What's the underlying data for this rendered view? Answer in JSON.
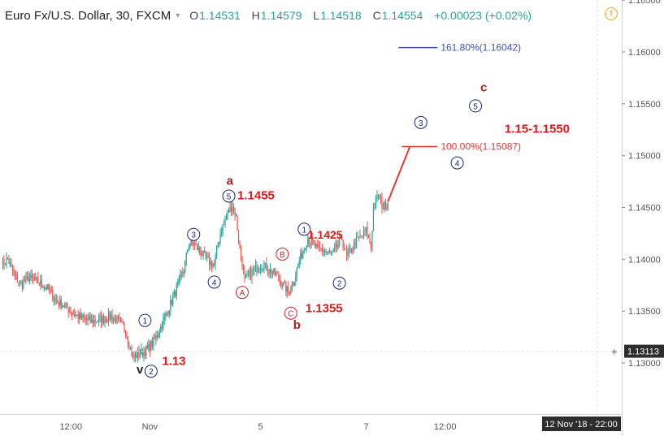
{
  "header": {
    "symbol_title": "Euro Fx/U.S. Dollar, 30, FXCM",
    "open_label": "O",
    "open": "1.14531",
    "high_label": "H",
    "high": "1.14579",
    "low_label": "L",
    "low": "1.14518",
    "close_label": "C",
    "close": "1.14554",
    "change": "+0.00023 (+0.02%)"
  },
  "alert_icon": "alert-circle-icon",
  "crosshair_price": "1.13113",
  "crosshair_time": "12 Nov '18 - 22:00",
  "colors": {
    "up": "#26a69a",
    "down": "#ef5350",
    "annot": "#e0191b",
    "wave": "#1a237e",
    "fib161": "#3f51b5",
    "fib100": "#e53935"
  },
  "chart_data": {
    "type": "candlestick",
    "title": "Euro Fx/U.S. Dollar, 30, FXCM",
    "xlabel": "",
    "ylabel": "",
    "ylim": [
      1.125,
      1.165
    ],
    "y_ticks": [
      "1.16500",
      "1.16000",
      "1.15500",
      "1.15000",
      "1.14500",
      "1.14000",
      "1.13500",
      "1.13000"
    ],
    "y_tick_values": [
      1.165,
      1.16,
      1.155,
      1.15,
      1.145,
      1.14,
      1.135,
      1.13
    ],
    "x_ticks": [
      "12:00",
      "Nov",
      "5",
      "7",
      "12:00"
    ],
    "x_tick_bars": [
      57,
      122,
      213,
      300,
      365
    ],
    "ohlc_anchors": [
      [
        0,
        1.1395
      ],
      [
        5,
        1.14
      ],
      [
        10,
        1.1385
      ],
      [
        16,
        1.1375
      ],
      [
        22,
        1.1382
      ],
      [
        30,
        1.1378
      ],
      [
        38,
        1.1372
      ],
      [
        45,
        1.136
      ],
      [
        52,
        1.1355
      ],
      [
        58,
        1.1348
      ],
      [
        66,
        1.1343
      ],
      [
        74,
        1.134
      ],
      [
        82,
        1.1342
      ],
      [
        90,
        1.1345
      ],
      [
        96,
        1.134
      ],
      [
        102,
        1.1332
      ],
      [
        108,
        1.1305
      ],
      [
        112,
        1.1308
      ],
      [
        116,
        1.131
      ],
      [
        120,
        1.1313
      ],
      [
        125,
        1.132
      ],
      [
        130,
        1.1332
      ],
      [
        135,
        1.1345
      ],
      [
        140,
        1.136
      ],
      [
        145,
        1.1375
      ],
      [
        150,
        1.139
      ],
      [
        153,
        1.141
      ],
      [
        156,
        1.1418
      ],
      [
        160,
        1.1412
      ],
      [
        165,
        1.1405
      ],
      [
        170,
        1.1398
      ],
      [
        175,
        1.1395
      ],
      [
        180,
        1.1425
      ],
      [
        186,
        1.1445
      ],
      [
        190,
        1.1452
      ],
      [
        193,
        1.144
      ],
      [
        196,
        1.141
      ],
      [
        200,
        1.138
      ],
      [
        204,
        1.1385
      ],
      [
        208,
        1.139
      ],
      [
        214,
        1.1395
      ],
      [
        220,
        1.139
      ],
      [
        226,
        1.1385
      ],
      [
        232,
        1.1375
      ],
      [
        236,
        1.1368
      ],
      [
        240,
        1.1378
      ],
      [
        244,
        1.1395
      ],
      [
        248,
        1.1408
      ],
      [
        252,
        1.142
      ],
      [
        256,
        1.1415
      ],
      [
        260,
        1.141
      ],
      [
        266,
        1.1408
      ],
      [
        272,
        1.1405
      ],
      [
        276,
        1.1412
      ],
      [
        280,
        1.142
      ],
      [
        284,
        1.1402
      ],
      [
        288,
        1.141
      ],
      [
        292,
        1.1418
      ],
      [
        296,
        1.1422
      ],
      [
        300,
        1.1428
      ],
      [
        304,
        1.1412
      ],
      [
        306,
        1.1448
      ],
      [
        310,
        1.1462
      ],
      [
        314,
        1.145
      ],
      [
        318,
        1.1455
      ]
    ],
    "projection_line": [
      [
        1.1456,
        318
      ],
      [
        1.15087,
        336
      ]
    ],
    "fib_levels": [
      {
        "label": "161.80%(1.16042)",
        "price": 1.16042,
        "start_bar": 336,
        "color": "#3f51b5"
      },
      {
        "label": "100.00%(1.15087)",
        "price": 1.15087,
        "start_bar": 336,
        "color": "#e53935"
      }
    ],
    "wave_circles": [
      {
        "label": "1",
        "bar": 118,
        "price": 1.1341,
        "color": "#1a237e"
      },
      {
        "label": "2",
        "bar": 123,
        "price": 1.1292,
        "color": "#1a237e"
      },
      {
        "label": "3",
        "bar": 158,
        "price": 1.1424,
        "color": "#1a237e"
      },
      {
        "label": "4",
        "bar": 175,
        "price": 1.1378,
        "color": "#1a237e"
      },
      {
        "label": "5",
        "bar": 187,
        "price": 1.1461,
        "color": "#1a237e"
      },
      {
        "label": "A",
        "bar": 198,
        "price": 1.1368,
        "color": "#c62828"
      },
      {
        "label": "B",
        "bar": 231,
        "price": 1.1405,
        "color": "#c62828"
      },
      {
        "label": "C",
        "bar": 238,
        "price": 1.1348,
        "color": "#c62828"
      },
      {
        "label": "1",
        "bar": 249,
        "price": 1.1429,
        "color": "#1a237e"
      },
      {
        "label": "2",
        "bar": 278,
        "price": 1.1377,
        "color": "#1a237e"
      },
      {
        "label": "3",
        "bar": 345,
        "price": 1.1532,
        "color": "#1a237e"
      },
      {
        "label": "4",
        "bar": 375,
        "price": 1.1493,
        "color": "#1a237e"
      },
      {
        "label": "5",
        "bar": 390,
        "price": 1.1548,
        "color": "#1a237e"
      }
    ],
    "annotations": [
      {
        "text": "a",
        "bar": 185,
        "price": 1.1472,
        "color": "#b71c1c",
        "size": 15
      },
      {
        "text": "1.1455",
        "bar": 194,
        "price": 1.1458,
        "color": "#e0191b",
        "size": 15
      },
      {
        "text": "1.1425",
        "bar": 252,
        "price": 1.142,
        "color": "#e0191b",
        "size": 14
      },
      {
        "text": "1.1355",
        "bar": 250,
        "price": 1.1349,
        "color": "#e0191b",
        "size": 15
      },
      {
        "text": "b",
        "bar": 240,
        "price": 1.1333,
        "color": "#b71c1c",
        "size": 15
      },
      {
        "text": "1.13",
        "bar": 132,
        "price": 1.1298,
        "color": "#e0191b",
        "size": 15
      },
      {
        "text": "v",
        "bar": 111,
        "price": 1.129,
        "color": "#222222",
        "size": 15
      },
      {
        "text": "c",
        "bar": 394,
        "price": 1.1562,
        "color": "#b71c1c",
        "size": 15
      },
      {
        "text": "1.15-1.1550",
        "bar": 414,
        "price": 1.1522,
        "color": "#e0191b",
        "size": 15
      }
    ]
  }
}
